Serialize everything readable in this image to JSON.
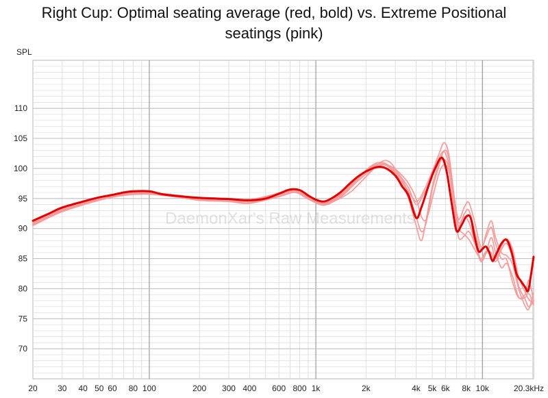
{
  "chart_data": {
    "type": "line",
    "title_lines": [
      "Right Cup: Optimal seating average (red, bold) vs. Extreme Positional",
      "seatings (pink)"
    ],
    "ylabel": "SPL",
    "xscale": "log",
    "xlim": [
      20,
      20300
    ],
    "ylim": [
      65,
      118
    ],
    "watermark": "DaemonXar's Raw Measurements",
    "grid": true,
    "x_ticks": [
      {
        "value": 20,
        "label": "20"
      },
      {
        "value": 30,
        "label": "30"
      },
      {
        "value": 40,
        "label": "40"
      },
      {
        "value": 50,
        "label": "50"
      },
      {
        "value": 60,
        "label": "60"
      },
      {
        "value": 80,
        "label": "80"
      },
      {
        "value": 100,
        "label": "100"
      },
      {
        "value": 200,
        "label": "200"
      },
      {
        "value": 300,
        "label": "300"
      },
      {
        "value": 400,
        "label": "400"
      },
      {
        "value": 600,
        "label": "600"
      },
      {
        "value": 800,
        "label": "800"
      },
      {
        "value": 1000,
        "label": "1k"
      },
      {
        "value": 2000,
        "label": "2k"
      },
      {
        "value": 4000,
        "label": "4k"
      },
      {
        "value": 5000,
        "label": "5k"
      },
      {
        "value": 6000,
        "label": "6k"
      },
      {
        "value": 8000,
        "label": "8k"
      },
      {
        "value": 10000,
        "label": "10k"
      },
      {
        "value": 20300,
        "label": "20.3kHz"
      }
    ],
    "y_ticks": [
      {
        "value": 70,
        "label": "70"
      },
      {
        "value": 75,
        "label": "75"
      },
      {
        "value": 80,
        "label": "80"
      },
      {
        "value": 85,
        "label": "85"
      },
      {
        "value": 90,
        "label": "90"
      },
      {
        "value": 95,
        "label": "95"
      },
      {
        "value": 100,
        "label": "100"
      },
      {
        "value": 105,
        "label": "105"
      },
      {
        "value": 110,
        "label": "110"
      }
    ],
    "series": [
      {
        "role": "optimal-average",
        "color": "#e00000",
        "points": [
          [
            20,
            91.3
          ],
          [
            25,
            92.5
          ],
          [
            30,
            93.5
          ],
          [
            40,
            94.5
          ],
          [
            50,
            95.2
          ],
          [
            60,
            95.6
          ],
          [
            70,
            96.0
          ],
          [
            80,
            96.2
          ],
          [
            100,
            96.2
          ],
          [
            120,
            95.7
          ],
          [
            150,
            95.4
          ],
          [
            200,
            95.1
          ],
          [
            300,
            94.9
          ],
          [
            400,
            94.7
          ],
          [
            500,
            95.0
          ],
          [
            600,
            95.8
          ],
          [
            700,
            96.5
          ],
          [
            800,
            96.4
          ],
          [
            900,
            95.5
          ],
          [
            1000,
            94.8
          ],
          [
            1100,
            94.5
          ],
          [
            1200,
            94.8
          ],
          [
            1400,
            96.0
          ],
          [
            1600,
            97.5
          ],
          [
            1800,
            98.7
          ],
          [
            2000,
            99.5
          ],
          [
            2300,
            100.2
          ],
          [
            2600,
            100.1
          ],
          [
            3000,
            98.8
          ],
          [
            3300,
            97.0
          ],
          [
            3600,
            95.5
          ],
          [
            4000,
            91.8
          ],
          [
            4300,
            93.5
          ],
          [
            4800,
            97.5
          ],
          [
            5200,
            100.0
          ],
          [
            5700,
            101.8
          ],
          [
            6100,
            99.5
          ],
          [
            6600,
            93.5
          ],
          [
            7000,
            89.6
          ],
          [
            7500,
            90.6
          ],
          [
            8000,
            92.0
          ],
          [
            8500,
            91.8
          ],
          [
            9000,
            88.5
          ],
          [
            9500,
            86.2
          ],
          [
            10000,
            86.6
          ],
          [
            10500,
            87.0
          ],
          [
            11000,
            86.0
          ],
          [
            11500,
            84.6
          ],
          [
            12000,
            85.5
          ],
          [
            13000,
            87.5
          ],
          [
            14000,
            88.1
          ],
          [
            15000,
            86.0
          ],
          [
            16000,
            82.5
          ],
          [
            17000,
            81.3
          ],
          [
            18000,
            80.3
          ],
          [
            18800,
            79.6
          ],
          [
            19500,
            82.0
          ],
          [
            20300,
            85.3
          ]
        ]
      },
      {
        "role": "extreme-1",
        "color": "#f59a9a",
        "points": [
          [
            20,
            91.0
          ],
          [
            30,
            93.3
          ],
          [
            50,
            95.1
          ],
          [
            70,
            95.8
          ],
          [
            100,
            96.0
          ],
          [
            150,
            95.5
          ],
          [
            200,
            95.2
          ],
          [
            300,
            95.0
          ],
          [
            400,
            94.8
          ],
          [
            600,
            95.9
          ],
          [
            750,
            96.6
          ],
          [
            900,
            95.3
          ],
          [
            1100,
            94.2
          ],
          [
            1400,
            95.6
          ],
          [
            1800,
            98.6
          ],
          [
            2200,
            100.6
          ],
          [
            2500,
            101.0
          ],
          [
            2800,
            100.3
          ],
          [
            3200,
            98.6
          ],
          [
            3600,
            96.2
          ],
          [
            4000,
            94.5
          ],
          [
            4400,
            96.0
          ],
          [
            5000,
            99.5
          ],
          [
            5500,
            102.5
          ],
          [
            5900,
            104.3
          ],
          [
            6300,
            102.2
          ],
          [
            6800,
            95.0
          ],
          [
            7200,
            91.5
          ],
          [
            7800,
            93.6
          ],
          [
            8300,
            94.3
          ],
          [
            9000,
            91.0
          ],
          [
            9800,
            87.0
          ],
          [
            10500,
            88.5
          ],
          [
            11300,
            90.2
          ],
          [
            12000,
            87.5
          ],
          [
            13000,
            85.0
          ],
          [
            14000,
            84.8
          ],
          [
            15200,
            81.0
          ],
          [
            16500,
            78.5
          ],
          [
            18000,
            79.0
          ],
          [
            19000,
            81.4
          ],
          [
            20300,
            78.0
          ]
        ]
      },
      {
        "role": "extreme-2",
        "color": "#f59a9a",
        "points": [
          [
            20,
            90.6
          ],
          [
            30,
            92.9
          ],
          [
            50,
            94.8
          ],
          [
            70,
            95.6
          ],
          [
            100,
            95.8
          ],
          [
            150,
            95.3
          ],
          [
            200,
            94.8
          ],
          [
            300,
            94.6
          ],
          [
            400,
            94.3
          ],
          [
            600,
            95.4
          ],
          [
            750,
            96.1
          ],
          [
            900,
            95.0
          ],
          [
            1100,
            94.0
          ],
          [
            1400,
            95.2
          ],
          [
            1800,
            98.0
          ],
          [
            2200,
            99.9
          ],
          [
            2500,
            100.6
          ],
          [
            2800,
            100.4
          ],
          [
            3200,
            99.2
          ],
          [
            3600,
            97.5
          ],
          [
            4000,
            95.0
          ],
          [
            4300,
            92.0
          ],
          [
            4600,
            91.5
          ],
          [
            5000,
            95.0
          ],
          [
            5500,
            99.3
          ],
          [
            5900,
            100.6
          ],
          [
            6300,
            99.5
          ],
          [
            6800,
            94.5
          ],
          [
            7200,
            90.2
          ],
          [
            7800,
            89.0
          ],
          [
            8300,
            88.2
          ],
          [
            9000,
            86.5
          ],
          [
            9800,
            85.0
          ],
          [
            10500,
            86.2
          ],
          [
            11300,
            86.0
          ],
          [
            12000,
            84.5
          ],
          [
            13000,
            86.5
          ],
          [
            14000,
            87.5
          ],
          [
            15200,
            85.0
          ],
          [
            16500,
            80.5
          ],
          [
            18000,
            78.3
          ],
          [
            19000,
            77.0
          ],
          [
            20300,
            78.0
          ]
        ]
      },
      {
        "role": "extreme-3",
        "color": "#f59a9a",
        "points": [
          [
            20,
            90.7
          ],
          [
            30,
            93.0
          ],
          [
            50,
            94.9
          ],
          [
            70,
            95.7
          ],
          [
            100,
            95.9
          ],
          [
            150,
            95.4
          ],
          [
            200,
            95.0
          ],
          [
            300,
            94.8
          ],
          [
            400,
            94.5
          ],
          [
            600,
            95.6
          ],
          [
            750,
            96.3
          ],
          [
            900,
            95.1
          ],
          [
            1100,
            94.1
          ],
          [
            1400,
            95.4
          ],
          [
            1800,
            98.3
          ],
          [
            2200,
            100.2
          ],
          [
            2500,
            100.8
          ],
          [
            2800,
            100.1
          ],
          [
            3200,
            98.2
          ],
          [
            3600,
            95.8
          ],
          [
            4000,
            92.0
          ],
          [
            4300,
            89.5
          ],
          [
            4600,
            91.0
          ],
          [
            5000,
            96.5
          ],
          [
            5500,
            100.5
          ],
          [
            5900,
            103.0
          ],
          [
            6300,
            101.5
          ],
          [
            6800,
            93.5
          ],
          [
            7200,
            88.5
          ],
          [
            7800,
            88.8
          ],
          [
            8300,
            89.5
          ],
          [
            9000,
            87.5
          ],
          [
            9800,
            84.5
          ],
          [
            10500,
            86.0
          ],
          [
            11300,
            88.5
          ],
          [
            12000,
            86.0
          ],
          [
            13000,
            83.5
          ],
          [
            14000,
            84.2
          ],
          [
            15200,
            82.0
          ],
          [
            16500,
            78.6
          ],
          [
            18000,
            78.5
          ],
          [
            19000,
            79.2
          ],
          [
            20300,
            77.3
          ]
        ]
      },
      {
        "role": "extreme-4",
        "color": "#f59a9a",
        "points": [
          [
            20,
            90.9
          ],
          [
            30,
            93.1
          ],
          [
            50,
            95.0
          ],
          [
            70,
            95.8
          ],
          [
            100,
            96.0
          ],
          [
            150,
            95.5
          ],
          [
            200,
            95.1
          ],
          [
            300,
            94.9
          ],
          [
            400,
            94.6
          ],
          [
            600,
            95.7
          ],
          [
            750,
            96.4
          ],
          [
            900,
            95.2
          ],
          [
            1100,
            94.3
          ],
          [
            1400,
            95.7
          ],
          [
            1800,
            98.5
          ],
          [
            2200,
            100.4
          ],
          [
            2500,
            100.7
          ],
          [
            2800,
            100.0
          ],
          [
            3200,
            97.8
          ],
          [
            3600,
            95.0
          ],
          [
            4000,
            90.5
          ],
          [
            4300,
            88.0
          ],
          [
            4600,
            91.5
          ],
          [
            5000,
            97.0
          ],
          [
            5500,
            100.8
          ],
          [
            5900,
            101.5
          ],
          [
            6300,
            99.8
          ],
          [
            6800,
            93.0
          ],
          [
            7200,
            90.5
          ],
          [
            7800,
            92.5
          ],
          [
            8300,
            93.0
          ],
          [
            9000,
            89.5
          ],
          [
            9800,
            86.5
          ],
          [
            10500,
            89.0
          ],
          [
            11300,
            91.3
          ],
          [
            12000,
            88.5
          ],
          [
            13000,
            86.0
          ],
          [
            14000,
            85.5
          ],
          [
            15200,
            84.0
          ],
          [
            16500,
            80.0
          ],
          [
            18000,
            77.2
          ],
          [
            19000,
            76.6
          ],
          [
            20300,
            79.3
          ]
        ]
      },
      {
        "role": "extreme-5",
        "color": "#f59a9a",
        "points": [
          [
            20,
            90.5
          ],
          [
            30,
            92.8
          ],
          [
            50,
            94.7
          ],
          [
            70,
            95.5
          ],
          [
            100,
            95.7
          ],
          [
            150,
            95.2
          ],
          [
            200,
            94.7
          ],
          [
            300,
            94.5
          ],
          [
            400,
            94.2
          ],
          [
            600,
            95.3
          ],
          [
            750,
            96.0
          ],
          [
            900,
            94.9
          ],
          [
            1100,
            93.9
          ],
          [
            1300,
            94.6
          ],
          [
            1600,
            96.0
          ],
          [
            1900,
            98.0
          ],
          [
            2200,
            99.8
          ],
          [
            2500,
            101.2
          ],
          [
            2800,
            101.0
          ],
          [
            3200,
            98.8
          ],
          [
            3600,
            96.8
          ],
          [
            4000,
            94.0
          ],
          [
            4400,
            95.5
          ],
          [
            5000,
            98.8
          ],
          [
            5500,
            101.8
          ],
          [
            5900,
            102.8
          ],
          [
            6300,
            100.5
          ],
          [
            6800,
            94.8
          ],
          [
            7200,
            91.0
          ],
          [
            7800,
            92.0
          ],
          [
            8300,
            91.0
          ],
          [
            9000,
            88.0
          ],
          [
            9800,
            84.8
          ],
          [
            10500,
            85.8
          ],
          [
            11300,
            87.2
          ],
          [
            12000,
            85.0
          ],
          [
            13000,
            87.0
          ],
          [
            14000,
            88.3
          ],
          [
            15200,
            86.5
          ],
          [
            16500,
            82.0
          ],
          [
            18000,
            79.5
          ],
          [
            19000,
            78.2
          ],
          [
            20300,
            77.6
          ]
        ]
      }
    ]
  }
}
